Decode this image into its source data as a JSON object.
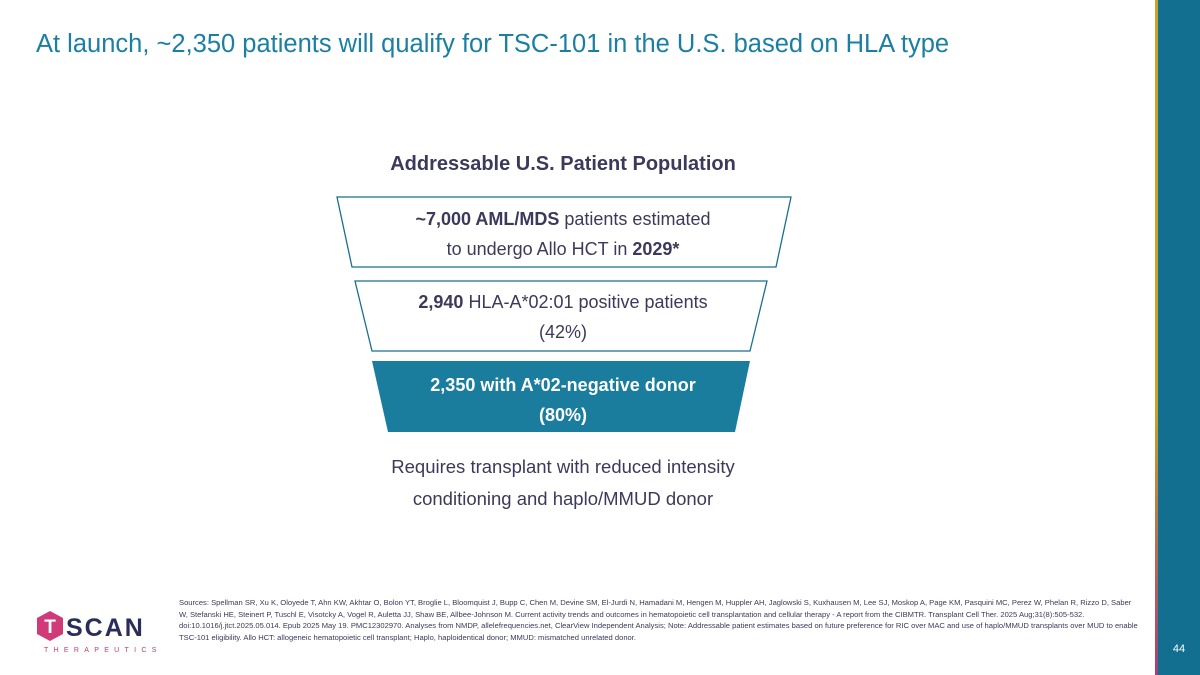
{
  "header": {
    "title": "At launch, ~2,350 patients will qualify for TSC-101 in the U.S. based on HLA type"
  },
  "funnel": {
    "title": "Addressable U.S. Patient Population",
    "levels": [
      {
        "lines": [
          [
            {
              "text": "~7,000 AML/MDS",
              "bold": true
            },
            {
              "text": " patients estimated",
              "bold": false
            }
          ],
          [
            {
              "text": "to undergo Allo HCT in ",
              "bold": false
            },
            {
              "text": "2029*",
              "bold": true
            }
          ]
        ]
      },
      {
        "lines": [
          [
            {
              "text": "2,940",
              "bold": true
            },
            {
              "text": " HLA-A*02:01 positive patients",
              "bold": false
            }
          ],
          [
            {
              "text": "(42%)",
              "bold": false
            }
          ]
        ]
      },
      {
        "lines": [
          [
            {
              "text": "2,350 with A*02-negative donor",
              "bold": true
            }
          ],
          [
            {
              "text": "(80%)",
              "bold": true
            }
          ]
        ]
      }
    ],
    "footnote": [
      "Requires transplant with reduced intensity",
      "conditioning and haplo/MMUD donor"
    ]
  },
  "footer": {
    "sources": "Sources: Spellman SR, Xu K, Oloyede T, Ahn KW, Akhtar O, Bolon YT, Broglie L, Bloomquist J, Bupp C, Chen M, Devine SM, El-Jurdi N, Hamadani M, Hengen M, Huppler AH, Jaglowski S, Kuxhausen M, Lee SJ, Moskop A, Page KM, Pasquini MC, Perez W, Phelan R, Rizzo D, Saber W, Stefanski HE, Steinert P, Tuschl E, Visotcky A, Vogel R, Auletta JJ, Shaw BE, Allbee-Johnson M. Current activity trends and outcomes in hematopoietic cell transplantation and cellular therapy - A report from the CIBMTR. Transplant Cell Ther. 2025 Aug;31(8):505-532. doi:10.1016/j.jtct.2025.05.014. Epub 2025 May 19. PMC12302970. Analyses from NMDP, allelefrequencies.net, ClearView Independent Analysis; Note: Addressable patient estimates based on future preference for RIC over MAC and use of haplo/MMUD transplants over MUD to enable TSC-101 eligibility. Allo HCT: allogeneic hematopoietic cell transplant; Haplo, haploidentical donor; MMUD: mismatched unrelated donor.",
    "page_number": "44",
    "logo": {
      "mark": "T",
      "name": "SCAN",
      "tagline": "THERAPEUTICS"
    }
  }
}
